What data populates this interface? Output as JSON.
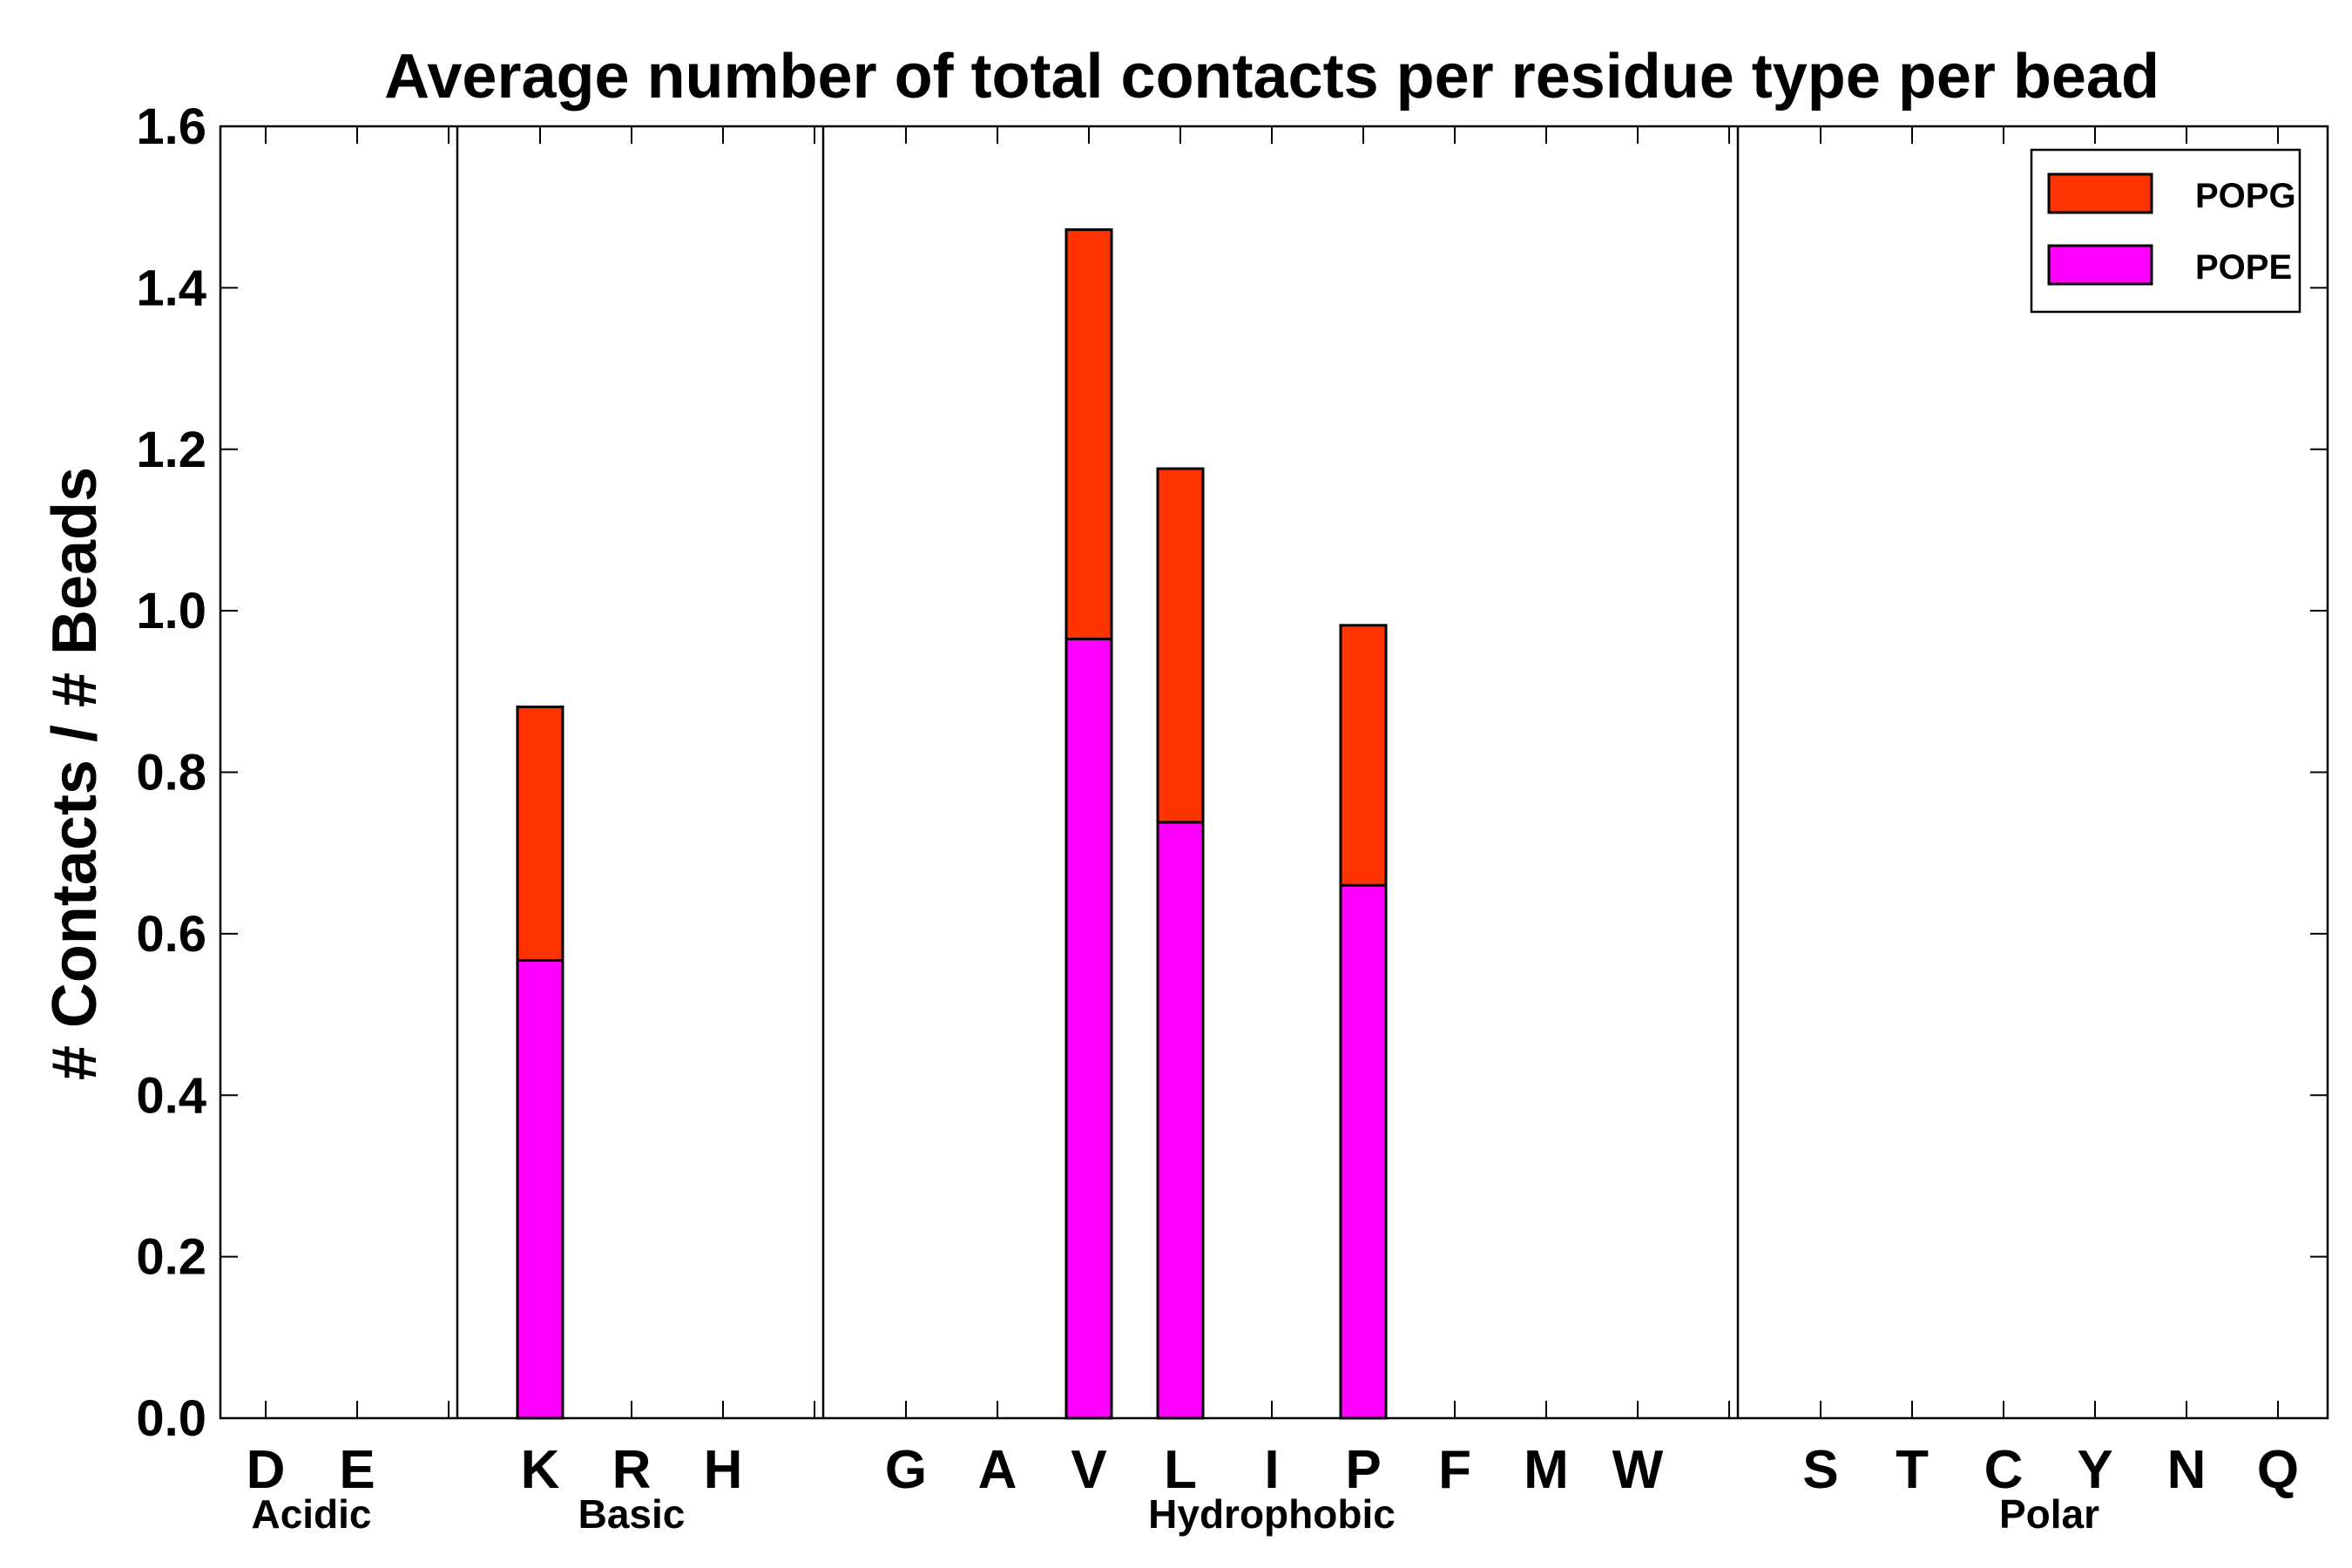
{
  "chart_data": {
    "type": "bar",
    "stacked": true,
    "title": "Average number of total contacts per residue type per bead",
    "xlabel": "",
    "ylabel": "# Contacts / # Beads",
    "ylim": [
      0,
      1.6
    ],
    "yticks": [
      "0.0",
      "0.2",
      "0.4",
      "0.6",
      "0.8",
      "1.0",
      "1.2",
      "1.4",
      "1.6"
    ],
    "categories": [
      "D",
      "E",
      "",
      "K",
      "R",
      "H",
      "",
      "G",
      "A",
      "V",
      "L",
      "I",
      "P",
      "F",
      "M",
      "W",
      "",
      "S",
      "T",
      "C",
      "Y",
      "N",
      "Q"
    ],
    "series": [
      {
        "name": "POPE",
        "color": "#ff00ff",
        "values": [
          0,
          0,
          0,
          0.567,
          0,
          0,
          0,
          0,
          0,
          0.965,
          0.738,
          0,
          0.66,
          0,
          0,
          0,
          0,
          0,
          0,
          0,
          0,
          0,
          0
        ]
      },
      {
        "name": "POPG",
        "color": "#ff3300",
        "values": [
          0,
          0,
          0,
          0.314,
          0,
          0,
          0,
          0,
          0,
          0.507,
          0.438,
          0,
          0.322,
          0,
          0,
          0,
          0,
          0,
          0,
          0,
          0,
          0,
          0
        ]
      }
    ],
    "groups": [
      {
        "label": "Acidic",
        "start": 0,
        "end": 1
      },
      {
        "label": "Basic",
        "start": 3,
        "end": 5
      },
      {
        "label": "Hydrophobic",
        "start": 7,
        "end": 15
      },
      {
        "label": "Polar",
        "start": 17,
        "end": 22
      }
    ],
    "separators_after_index": [
      2,
      6,
      16
    ],
    "legend": {
      "position": "top-right",
      "entries": [
        {
          "label": "POPG",
          "color": "#ff3300"
        },
        {
          "label": "POPE",
          "color": "#ff00ff"
        }
      ]
    },
    "grid": false
  }
}
